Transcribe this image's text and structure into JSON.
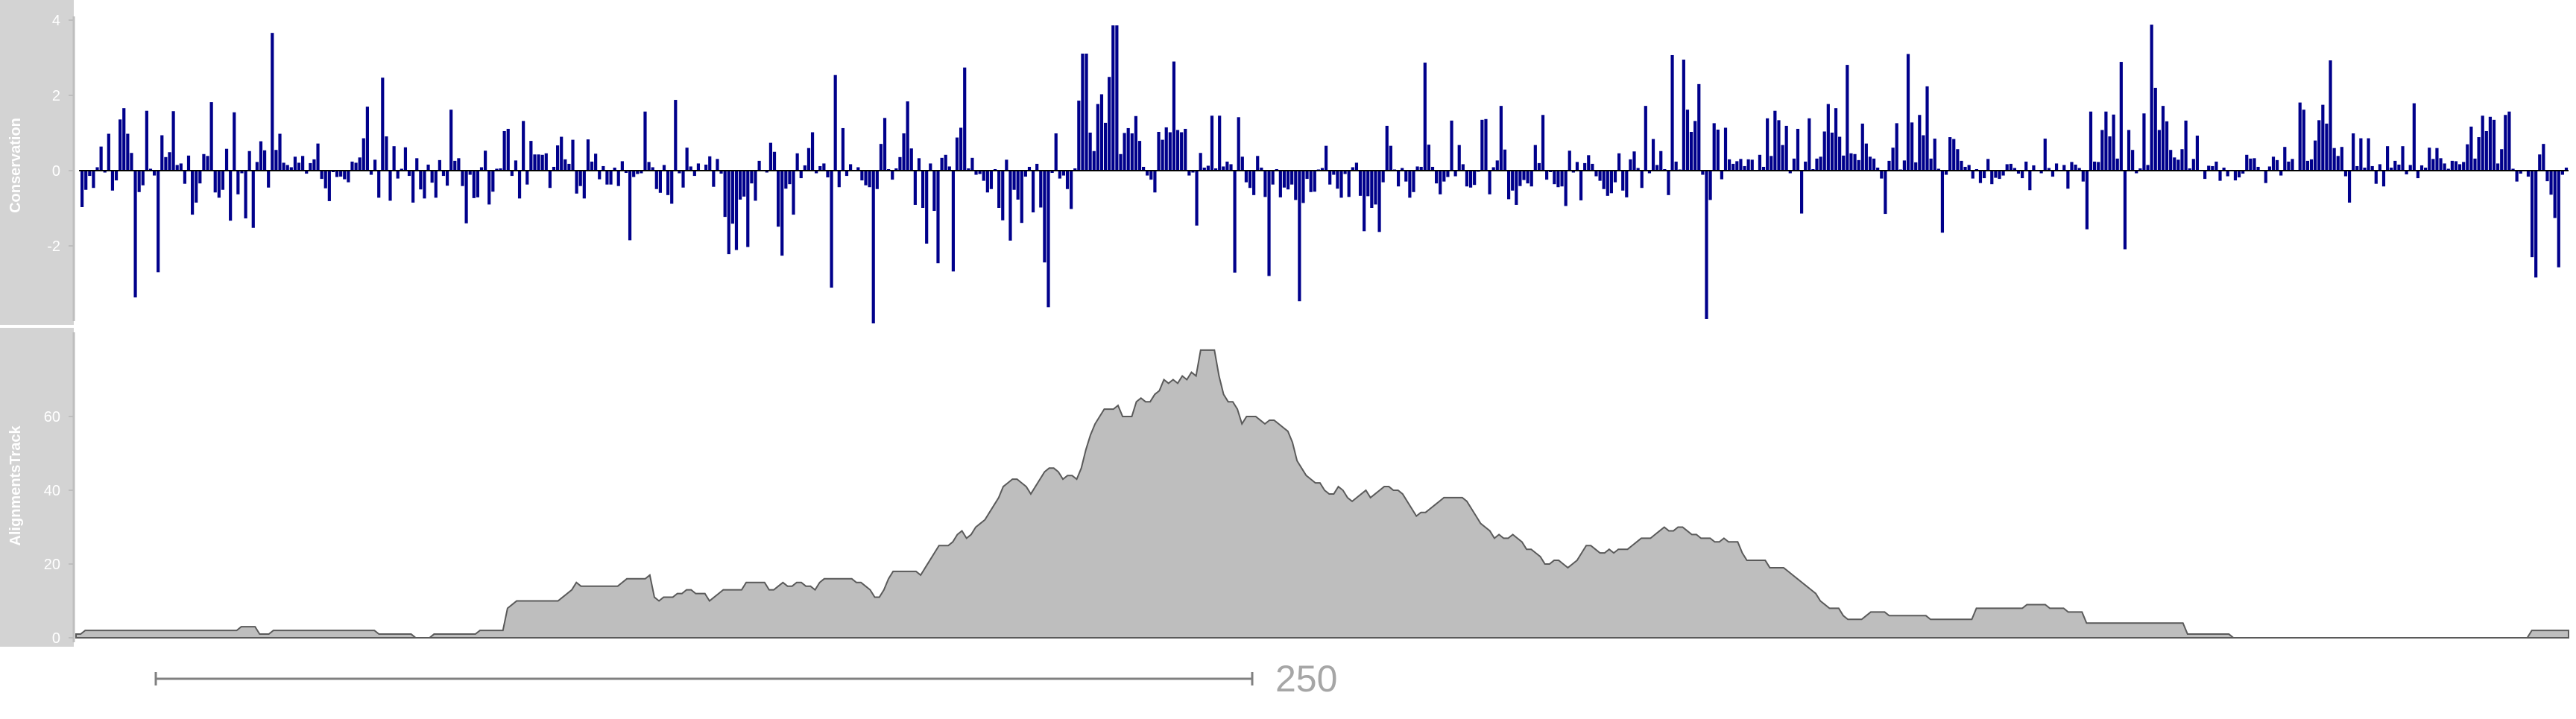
{
  "chart_data": [
    {
      "type": "bar",
      "track_title": "Conservation",
      "yticks": [
        "-2",
        "0",
        "2",
        "4"
      ],
      "ylim": [
        -4.2,
        4.2
      ],
      "baseline": 0,
      "bar_color": "#00008b",
      "values": [
        -0.97,
        -0.51,
        -0.14,
        -0.46,
        0.09,
        0.64,
        -0.05,
        0.98,
        -0.53,
        -0.26,
        1.36,
        1.66,
        0.98,
        0.47,
        -3.37,
        -0.57,
        -0.39,
        1.59,
        0.05,
        -0.13,
        -2.7,
        0.94,
        0.36,
        0.49,
        1.58,
        0.15,
        0.19,
        -0.35,
        0.4,
        -1.17,
        -0.85,
        -0.34,
        0.44,
        0.39,
        1.82,
        -0.58,
        -0.72,
        -0.51,
        0.58,
        -1.33,
        1.55,
        -0.63,
        -0.07,
        -1.27,
        0.52,
        -1.52,
        0.23,
        0.78,
        0.54,
        -0.45,
        3.66,
        0.55,
        0.98,
        0.21,
        0.15,
        0.09,
        0.37,
        0.21,
        0.39,
        -0.08,
        0.2,
        0.3,
        0.72,
        -0.22,
        -0.47,
        -0.81,
        -0.04,
        -0.17,
        -0.16,
        -0.23,
        -0.31,
        0.24,
        0.21,
        0.35,
        0.86,
        1.7,
        -0.11,
        0.29,
        -0.72,
        2.47,
        0.91,
        -0.8,
        0.65,
        -0.21,
        0.05,
        0.62,
        -0.14,
        -0.85,
        0.33,
        -0.5,
        -0.74,
        0.16,
        -0.32,
        -0.72,
        0.28,
        -0.14,
        -0.4,
        1.62,
        0.26,
        0.33,
        -0.41,
        -1.4,
        -0.11,
        -0.73,
        -0.71,
        0.09,
        0.53,
        -0.9,
        -0.56,
        0.05,
        0.06,
        1.05,
        1.11,
        -0.14,
        0.27,
        -0.74,
        1.32,
        -0.37,
        0.79,
        0.43,
        0.43,
        0.42,
        0.46,
        -0.46,
        0.1,
        0.67,
        0.9,
        0.3,
        0.18,
        0.82,
        -0.61,
        -0.41,
        -0.74,
        0.83,
        0.24,
        0.45,
        -0.23,
        0.12,
        -0.37,
        -0.37,
        0.08,
        -0.41,
        0.25,
        -0.06,
        -1.85,
        -0.17,
        -0.09,
        -0.07,
        1.57,
        0.23,
        0.09,
        -0.49,
        -0.59,
        0.15,
        -0.65,
        -0.88,
        1.88,
        -0.07,
        -0.45,
        0.61,
        0.11,
        -0.14,
        0.19,
        -0.01,
        0.16,
        0.38,
        -0.43,
        0.31,
        -0.08,
        -1.23,
        -2.22,
        -1.41,
        -2.11,
        -0.77,
        -0.69,
        -2.03,
        -0.34,
        -0.8,
        0.26,
        0.01,
        -0.05,
        0.74,
        0.5,
        -1.49,
        -2.26,
        -0.48,
        -0.36,
        -1.17,
        0.46,
        -0.2,
        0.14,
        0.6,
        1.02,
        -0.07,
        0.12,
        0.19,
        -0.18,
        -3.11,
        2.54,
        -0.44,
        1.13,
        -0.14,
        0.17,
        0.02,
        0.09,
        -0.26,
        -0.39,
        -0.44,
        -4.06,
        -0.49,
        0.71,
        1.4,
        0.04,
        -0.24,
        0.06,
        0.36,
        0.99,
        1.84,
        0.59,
        -0.91,
        0.33,
        -0.99,
        -1.94,
        0.19,
        -1.07,
        -2.46,
        0.34,
        0.42,
        0.11,
        -2.68,
        0.88,
        1.14,
        2.74,
        0.06,
        0.34,
        -0.11,
        -0.09,
        -0.27,
        -0.58,
        -0.49,
        0.04,
        -0.99,
        -1.32,
        0.29,
        -1.86,
        -0.51,
        -0.77,
        -1.39,
        -0.16,
        0.1,
        -1.11,
        0.18,
        -0.98,
        -2.44,
        -3.63,
        -0.06,
        0.99,
        -0.21,
        -0.13,
        -0.49,
        -1.02,
        0.06,
        1.86,
        3.11,
        3.11,
        1.01,
        0.52,
        1.77,
        2.03,
        1.27,
        2.49,
        3.86,
        3.86,
        0.44,
        1.0,
        1.13,
        0.99,
        1.45,
        0.79,
        0.1,
        -0.13,
        -0.24,
        -0.58,
        1.03,
        0.82,
        1.15,
        1.02,
        2.9,
        1.08,
        1.02,
        1.11,
        -0.13,
        -0.05,
        -1.46,
        0.47,
        0.08,
        0.13,
        1.46,
        0.06,
        1.46,
        0.11,
        0.24,
        0.17,
        -2.71,
        1.42,
        0.37,
        -0.31,
        -0.46,
        -0.65,
        0.39,
        0.08,
        -0.7,
        -2.8,
        -0.37,
        0.04,
        -0.71,
        -0.45,
        -0.5,
        -0.37,
        -0.78,
        -3.47,
        -0.86,
        -0.22,
        -0.57,
        -0.56,
        0.03,
        0.07,
        0.66,
        -0.37,
        -0.11,
        -0.48,
        -0.72,
        -0.09,
        -0.7,
        0.09,
        0.21,
        -0.67,
        -1.61,
        -0.68,
        -0.99,
        -0.9,
        -1.63,
        -0.31,
        1.19,
        0.66,
        0.03,
        -0.42,
        0.07,
        -0.29,
        -0.72,
        -0.57,
        0.11,
        0.1,
        2.87,
        0.69,
        0.1,
        -0.34,
        -0.63,
        -0.29,
        -0.17,
        1.33,
        -0.15,
        0.68,
        0.17,
        -0.42,
        -0.45,
        -0.38,
        -0.03,
        1.35,
        1.37,
        -0.63,
        0.09,
        0.27,
        1.72,
        0.56,
        -0.76,
        -0.53,
        -0.91,
        -0.41,
        -0.25,
        -0.34,
        -0.42,
        0.68,
        0.2,
        1.48,
        -0.24,
        -0.04,
        -0.36,
        -0.44,
        -0.42,
        -0.94,
        0.53,
        -0.05,
        0.23,
        -0.79,
        0.2,
        0.41,
        0.18,
        -0.15,
        -0.27,
        -0.49,
        -0.67,
        -0.6,
        -0.31,
        0.46,
        -0.53,
        -0.71,
        0.3,
        0.51,
        0.07,
        -0.46,
        1.72,
        -0.07,
        0.84,
        0.15,
        0.52,
        0.04,
        -0.65,
        3.07,
        0.24,
        0.03,
        2.95,
        1.62,
        1.03,
        1.32,
        2.3,
        -0.11,
        -3.94,
        -0.78,
        1.26,
        1.09,
        -0.23,
        1.14,
        0.3,
        0.18,
        0.25,
        0.31,
        0.12,
        0.3,
        0.29,
        -0.02,
        0.42,
        0.1,
        1.39,
        0.39,
        1.59,
        1.34,
        0.68,
        1.19,
        -0.07,
        0.32,
        1.11,
        -1.14,
        0.24,
        1.39,
        0.04,
        0.32,
        0.37,
        1.04,
        1.77,
        1.01,
        1.66,
        0.9,
        0.4,
        2.81,
        0.46,
        0.44,
        0.28,
        1.25,
        0.72,
        0.37,
        0.32,
        0.08,
        -0.21,
        -1.15,
        0.26,
        0.61,
        1.26,
        0.03,
        0.27,
        3.1,
        1.28,
        0.22,
        1.48,
        0.94,
        2.24,
        0.32,
        0.85,
        0.05,
        -1.65,
        -0.11,
        0.89,
        0.84,
        0.57,
        0.26,
        0.1,
        0.15,
        -0.21,
        0.04,
        -0.33,
        -0.2,
        0.31,
        -0.36,
        -0.19,
        -0.22,
        -0.13,
        0.17,
        0.18,
        0.07,
        -0.08,
        -0.2,
        0.24,
        -0.52,
        0.14,
        0.0,
        -0.07,
        0.85,
        0.07,
        -0.16,
        0.19,
        -0.02,
        0.15,
        -0.48,
        0.23,
        0.16,
        0.07,
        -0.29,
        -1.56,
        1.57,
        0.24,
        0.23,
        1.08,
        1.57,
        0.91,
        1.49,
        0.32,
        2.89,
        -2.09,
        1.08,
        0.55,
        -0.07,
        0.06,
        1.52,
        0.15,
        3.88,
        2.2,
        1.08,
        1.72,
        1.31,
        0.55,
        0.35,
        0.29,
        0.57,
        1.33,
        0.06,
        0.31,
        0.93,
        0.02,
        -0.22,
        0.13,
        0.12,
        0.24,
        -0.27,
        0.08,
        -0.15,
        0.02,
        -0.26,
        -0.18,
        -0.08,
        0.42,
        0.32,
        0.33,
        0.1,
        0.0,
        -0.33,
        0.11,
        0.37,
        0.28,
        -0.13,
        0.63,
        0.24,
        0.31,
        0.02,
        1.81,
        1.62,
        0.26,
        0.3,
        0.8,
        1.34,
        1.75,
        1.25,
        2.93,
        0.6,
        0.39,
        0.63,
        -0.15,
        -0.85,
        0.99,
        0.12,
        0.86,
        0.08,
        0.86,
        0.12,
        -0.35,
        0.17,
        -0.42,
        0.65,
        0.08,
        0.26,
        0.16,
        0.65,
        -0.1,
        0.15,
        1.79,
        -0.2,
        0.14,
        0.08,
        0.61,
        0.31,
        0.6,
        0.33,
        0.19,
        0.05,
        0.26,
        0.25,
        0.17,
        0.23,
        0.7,
        1.17,
        0.32,
        0.89,
        1.46,
        1.05,
        1.43,
        1.35,
        0.19,
        0.57,
        1.48,
        1.57,
        0.05,
        -0.29,
        -0.08,
        -0.02,
        -0.16,
        -2.3,
        -2.84,
        0.43,
        0.71,
        -0.28,
        -0.64,
        -1.26,
        -2.57,
        -0.11,
        0.08
      ]
    },
    {
      "type": "area",
      "track_title": "AlignmentsTrack",
      "yticks": [
        "0",
        "20",
        "40",
        "60"
      ],
      "ylim": [
        0,
        78
      ],
      "fill_color": "#bebebe",
      "values": [
        1,
        1,
        2,
        2,
        2,
        2,
        2,
        2,
        2,
        2,
        2,
        2,
        2,
        2,
        2,
        2,
        2,
        2,
        2,
        2,
        2,
        2,
        2,
        2,
        2,
        2,
        2,
        2,
        2,
        2,
        2,
        2,
        2,
        2,
        2,
        2,
        3,
        3,
        3,
        3,
        1,
        1,
        1,
        2,
        2,
        2,
        2,
        2,
        2,
        2,
        2,
        2,
        2,
        2,
        2,
        2,
        2,
        2,
        2,
        2,
        2,
        2,
        2,
        2,
        2,
        2,
        1,
        1,
        1,
        1,
        1,
        1,
        1,
        1,
        0,
        0,
        0,
        0,
        1,
        1,
        1,
        1,
        1,
        1,
        1,
        1,
        1,
        1,
        2,
        2,
        2,
        2,
        2,
        2,
        8,
        9,
        10,
        10,
        10,
        10,
        10,
        10,
        10,
        10,
        10,
        10,
        11,
        12,
        13,
        15,
        14,
        14,
        14,
        14,
        14,
        14,
        14,
        14,
        14,
        15,
        16,
        16,
        16,
        16,
        16,
        17,
        11,
        10,
        11,
        11,
        11,
        12,
        12,
        13,
        13,
        12,
        12,
        12,
        10,
        11,
        12,
        13,
        13,
        13,
        13,
        13,
        15,
        15,
        15,
        15,
        15,
        13,
        13,
        14,
        15,
        14,
        14,
        15,
        15,
        14,
        14,
        13,
        15,
        16,
        16,
        16,
        16,
        16,
        16,
        16,
        15,
        15,
        14,
        13,
        11,
        11,
        13,
        16,
        18,
        18,
        18,
        18,
        18,
        18,
        17,
        19,
        21,
        23,
        25,
        25,
        25,
        26,
        28,
        29,
        27,
        28,
        30,
        31,
        32,
        34,
        36,
        38,
        41,
        42,
        43,
        43,
        42,
        41,
        39,
        41,
        43,
        45,
        46,
        46,
        45,
        43,
        44,
        44,
        43,
        46,
        51,
        55,
        58,
        60,
        62,
        62,
        62,
        63,
        60,
        60,
        60,
        64,
        65,
        64,
        64,
        66,
        67,
        70,
        69,
        70,
        69,
        71,
        70,
        72,
        71,
        78,
        78,
        78,
        78,
        71,
        66,
        64,
        64,
        62,
        58,
        60,
        60,
        60,
        59,
        58,
        59,
        59,
        58,
        57,
        56,
        53,
        48,
        46,
        44,
        43,
        42,
        42,
        40,
        39,
        39,
        41,
        40,
        38,
        37,
        38,
        39,
        40,
        38,
        39,
        40,
        41,
        41,
        40,
        40,
        39,
        37,
        35,
        33,
        34,
        34,
        35,
        36,
        37,
        38,
        38,
        38,
        38,
        38,
        37,
        35,
        33,
        31,
        30,
        29,
        27,
        28,
        27,
        27,
        28,
        27,
        26,
        24,
        24,
        23,
        22,
        20,
        20,
        21,
        21,
        20,
        19,
        20,
        21,
        23,
        25,
        25,
        24,
        23,
        23,
        24,
        23,
        24,
        24,
        24,
        25,
        26,
        27,
        27,
        27,
        28,
        29,
        30,
        29,
        29,
        30,
        30,
        29,
        28,
        28,
        27,
        27,
        27,
        26,
        26,
        27,
        26,
        26,
        26,
        23,
        21,
        21,
        21,
        21,
        21,
        19,
        19,
        19,
        19,
        18,
        17,
        16,
        15,
        14,
        13,
        12,
        10,
        9,
        8,
        8,
        8,
        6,
        5,
        5,
        5,
        5,
        6,
        7,
        7,
        7,
        7,
        6,
        6,
        6,
        6,
        6,
        6,
        6,
        6,
        6,
        5,
        5,
        5,
        5,
        5,
        5,
        5,
        5,
        5,
        5,
        8,
        8,
        8,
        8,
        8,
        8,
        8,
        8,
        8,
        8,
        8,
        9,
        9,
        9,
        9,
        9,
        8,
        8,
        8,
        8,
        7,
        7,
        7,
        7,
        4,
        4,
        4,
        4,
        4,
        4,
        4,
        4,
        4,
        4,
        4,
        4,
        4,
        4,
        4,
        4,
        4,
        4,
        4,
        4,
        4,
        4,
        1,
        1,
        1,
        1,
        1,
        1,
        1,
        1,
        1,
        1,
        0,
        0,
        0,
        0,
        0,
        0,
        0,
        0,
        0,
        0,
        0,
        0,
        0,
        0,
        0,
        0,
        0,
        0,
        0,
        0,
        0,
        0,
        0,
        0,
        0,
        0,
        0,
        0,
        0,
        0,
        0,
        0,
        0,
        0,
        0,
        0,
        0,
        0,
        0,
        0,
        0,
        0,
        0,
        0,
        0,
        0,
        0,
        0,
        0,
        0,
        0,
        0,
        0,
        0,
        0,
        0,
        0,
        0,
        0,
        0,
        0,
        0,
        0,
        0,
        0,
        2,
        2,
        2,
        2,
        2,
        2,
        2,
        2,
        2
      ]
    }
  ],
  "scale_bar_label": "250",
  "colors": {
    "title_panel": "#d3d3d3",
    "title_text": "#ffffff",
    "axis": "#bebebe",
    "scale_bar": "#808080",
    "scale_text": "#a6a6a6"
  }
}
